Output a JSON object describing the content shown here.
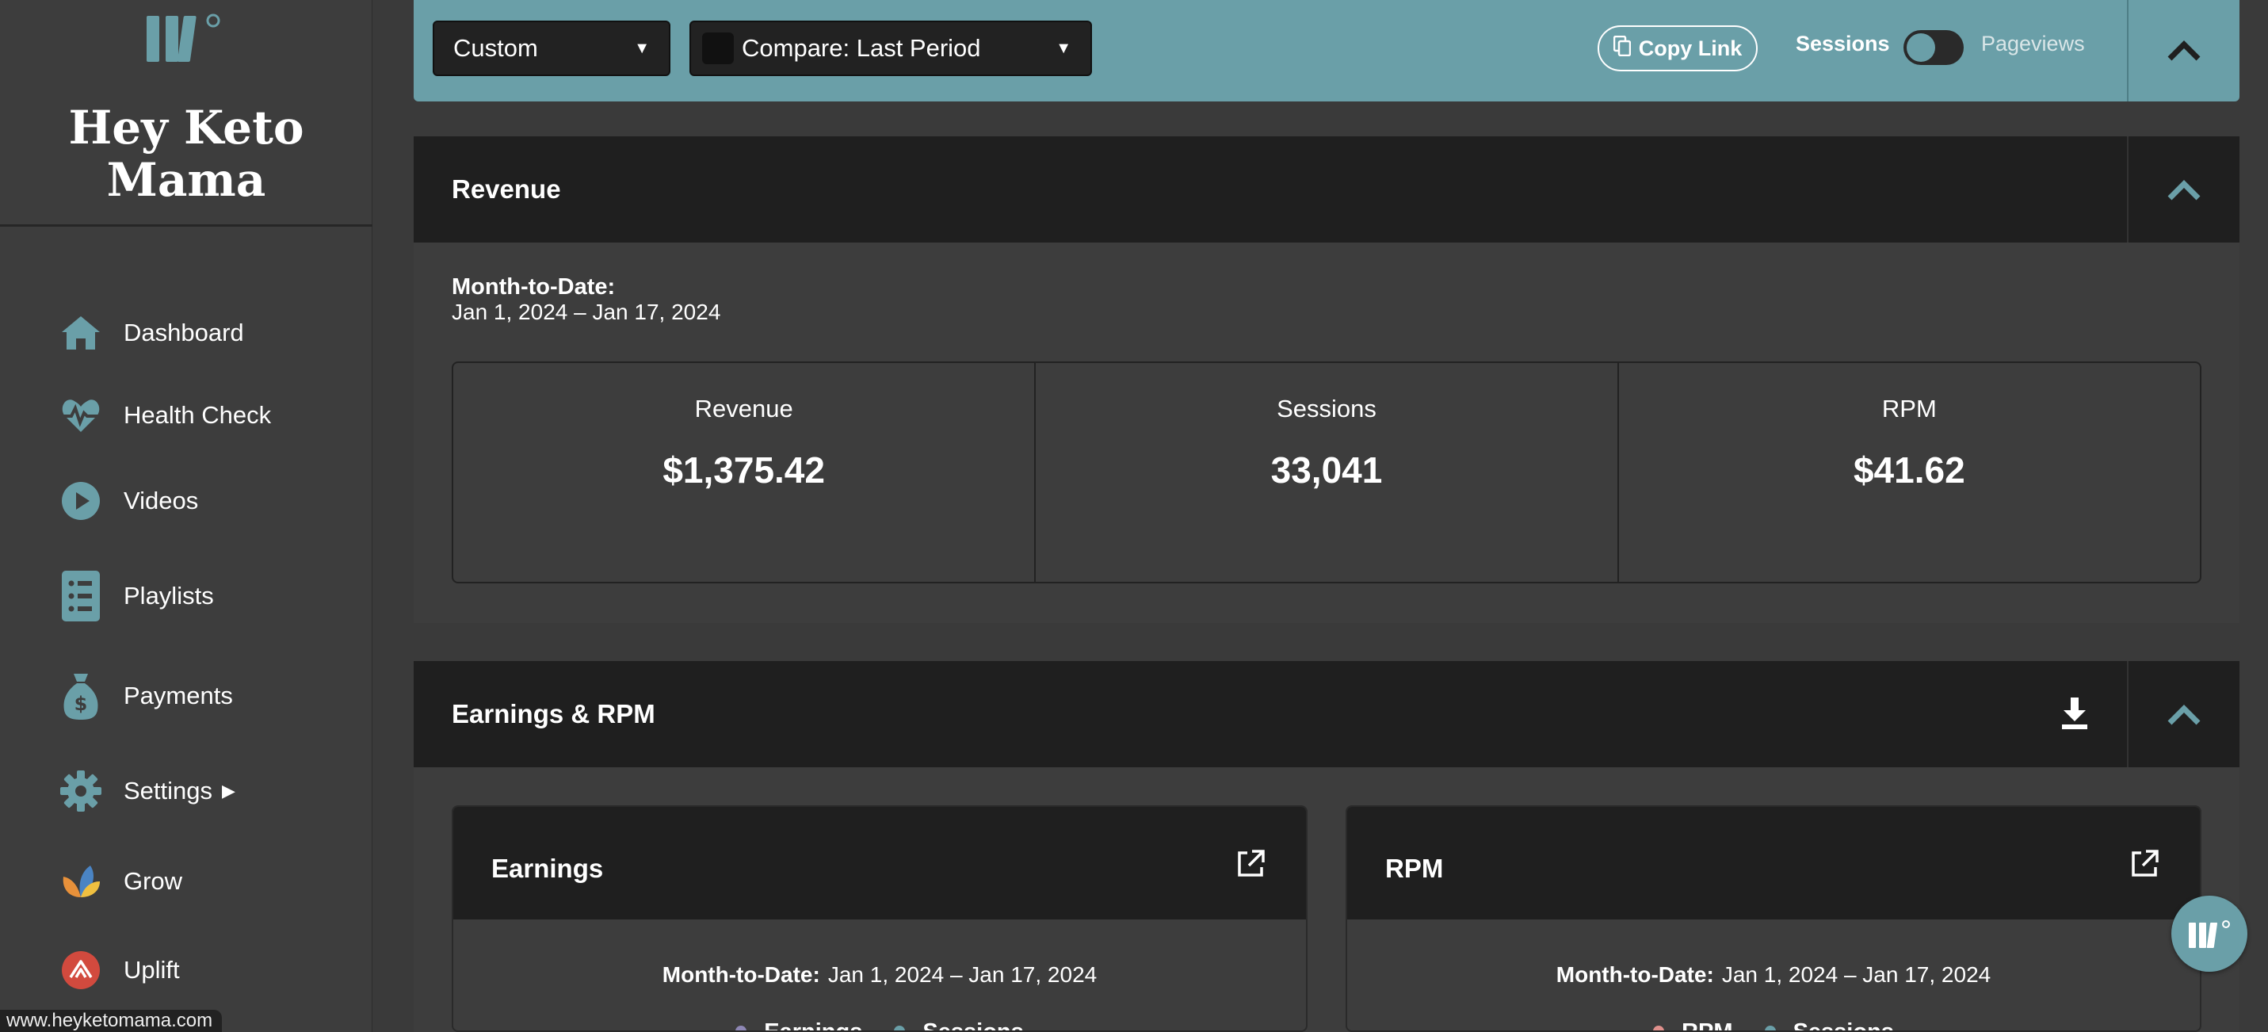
{
  "sidebar": {
    "site_name": "Hey Keto Mama",
    "items": [
      {
        "label": "Dashboard",
        "icon": "home-icon"
      },
      {
        "label": "Health Check",
        "icon": "heartbeat-icon"
      },
      {
        "label": "Videos",
        "icon": "play-icon"
      },
      {
        "label": "Playlists",
        "icon": "list-icon"
      },
      {
        "label": "Payments",
        "icon": "money-bag-icon"
      },
      {
        "label": "Settings",
        "icon": "gear-icon"
      },
      {
        "label": "Grow",
        "icon": "grow-icon"
      },
      {
        "label": "Uplift",
        "icon": "uplift-icon"
      }
    ]
  },
  "status_bar": {
    "url": "www.heyketomama.com"
  },
  "filters": {
    "date_range": "Custom",
    "compare": "Compare: Last Period",
    "copy_link": "Copy Link",
    "toggle_on_label": "Sessions",
    "toggle_off_label": "Pageviews"
  },
  "revenue_panel": {
    "title": "Revenue",
    "mtd_label": "Month-to-Date:",
    "mtd_range": "Jan 1, 2024 – Jan 17, 2024",
    "stats": [
      {
        "label": "Revenue",
        "value": "$1,375.42"
      },
      {
        "label": "Sessions",
        "value": "33,041"
      },
      {
        "label": "RPM",
        "value": "$41.62"
      }
    ]
  },
  "earnings_panel": {
    "title": "Earnings & RPM",
    "cards": [
      {
        "title": "Earnings",
        "mtd_label": "Month-to-Date:",
        "mtd_range": "Jan 1, 2024 – Jan 17, 2024",
        "legend": [
          {
            "label": "Earnings",
            "color": "#8e87b5"
          },
          {
            "label": "Sessions",
            "color": "#6a9fa8"
          }
        ]
      },
      {
        "title": "RPM",
        "mtd_label": "Month-to-Date:",
        "mtd_range": "Jan 1, 2024 – Jan 17, 2024",
        "legend": [
          {
            "label": "RPM",
            "color": "#e0908c"
          },
          {
            "label": "Sessions",
            "color": "#6a9fa8"
          }
        ]
      }
    ]
  },
  "colors": {
    "accent": "#6a9fa8",
    "panel_header": "#1f1f1f",
    "background": "#3a3a3a"
  }
}
